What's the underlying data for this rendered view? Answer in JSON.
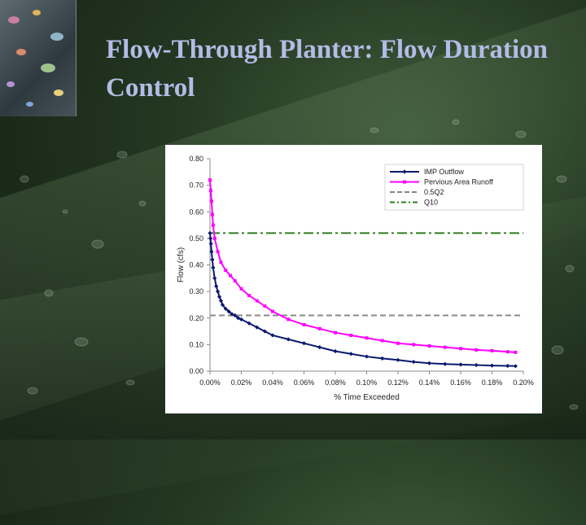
{
  "slide": {
    "title": "Flow-Through Planter: Flow Duration Control"
  },
  "chart_data": {
    "type": "line",
    "xlabel": "% Time Exceeded",
    "ylabel": "Flow (cfs)",
    "xlim": [
      0,
      0.2
    ],
    "ylim": [
      0,
      0.8
    ],
    "x_ticks": [
      "0.00%",
      "0.02%",
      "0.04%",
      "0.06%",
      "0.08%",
      "0.10%",
      "0.12%",
      "0.14%",
      "0.16%",
      "0.18%",
      "0.20%"
    ],
    "y_ticks": [
      "0.00",
      "0.10",
      "0.20",
      "0.30",
      "0.40",
      "0.50",
      "0.60",
      "0.70",
      "0.80"
    ],
    "legend_position": "top-right",
    "series": [
      {
        "name": "IMP Outflow",
        "color": "#0b1a6e",
        "style": "line-marker-diamond",
        "x": [
          0.0,
          0.0003,
          0.0006,
          0.001,
          0.0015,
          0.002,
          0.003,
          0.004,
          0.005,
          0.006,
          0.007,
          0.008,
          0.01,
          0.012,
          0.014,
          0.016,
          0.018,
          0.02,
          0.025,
          0.03,
          0.035,
          0.04,
          0.05,
          0.06,
          0.07,
          0.08,
          0.09,
          0.1,
          0.11,
          0.12,
          0.13,
          0.14,
          0.15,
          0.16,
          0.17,
          0.18,
          0.19,
          0.195
        ],
        "y": [
          0.52,
          0.5,
          0.48,
          0.45,
          0.42,
          0.39,
          0.35,
          0.32,
          0.3,
          0.28,
          0.265,
          0.25,
          0.235,
          0.225,
          0.215,
          0.21,
          0.2,
          0.195,
          0.18,
          0.165,
          0.15,
          0.135,
          0.12,
          0.105,
          0.09,
          0.075,
          0.065,
          0.055,
          0.048,
          0.042,
          0.035,
          0.03,
          0.027,
          0.025,
          0.023,
          0.021,
          0.02,
          0.019
        ]
      },
      {
        "name": "Pervious Area Runoff",
        "color": "#ff00ff",
        "style": "line-marker-square",
        "x": [
          0.0,
          0.0005,
          0.001,
          0.0015,
          0.002,
          0.003,
          0.005,
          0.007,
          0.01,
          0.013,
          0.016,
          0.02,
          0.025,
          0.03,
          0.035,
          0.04,
          0.05,
          0.06,
          0.07,
          0.08,
          0.09,
          0.1,
          0.11,
          0.12,
          0.13,
          0.14,
          0.15,
          0.16,
          0.17,
          0.18,
          0.19,
          0.195
        ],
        "y": [
          0.72,
          0.68,
          0.64,
          0.59,
          0.55,
          0.5,
          0.45,
          0.41,
          0.38,
          0.36,
          0.34,
          0.31,
          0.285,
          0.265,
          0.245,
          0.225,
          0.195,
          0.175,
          0.16,
          0.145,
          0.135,
          0.125,
          0.115,
          0.105,
          0.1,
          0.095,
          0.09,
          0.085,
          0.08,
          0.077,
          0.073,
          0.071
        ]
      },
      {
        "name": "0.5Q2",
        "color": "#888888",
        "style": "dashed",
        "value": 0.21
      },
      {
        "name": "Q10",
        "color": "#2e7d1f",
        "style": "dash-dot",
        "value": 0.52
      }
    ]
  }
}
